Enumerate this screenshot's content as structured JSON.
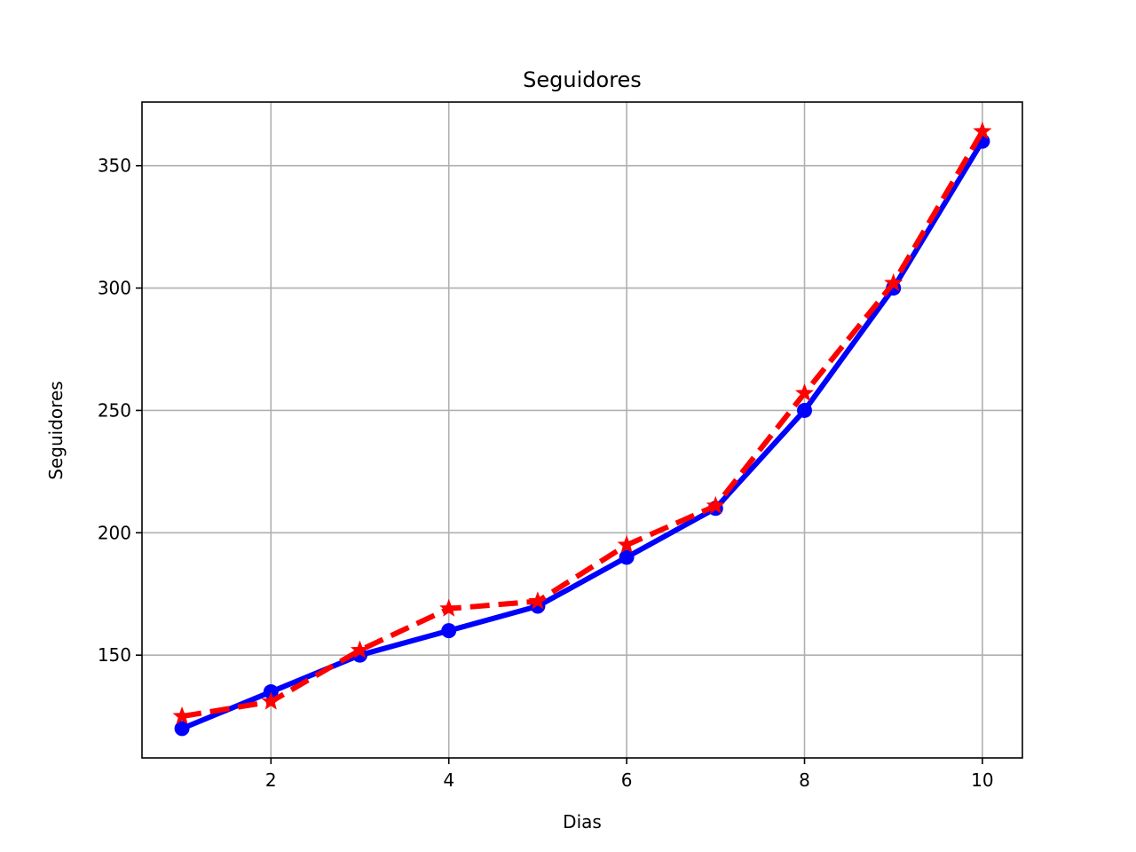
{
  "chart_data": {
    "type": "line",
    "title": "Seguidores",
    "xlabel": "Dias",
    "ylabel": "Seguidores",
    "x": [
      1,
      2,
      3,
      4,
      5,
      6,
      7,
      8,
      9,
      10
    ],
    "xlim": [
      0.55,
      10.45
    ],
    "ylim": [
      108,
      376
    ],
    "xticks": [
      2,
      4,
      6,
      8,
      10
    ],
    "yticks": [
      150,
      200,
      250,
      300,
      350
    ],
    "grid": true,
    "series": [
      {
        "values": [
          120,
          135,
          150,
          160,
          170,
          190,
          210,
          250,
          300,
          360
        ],
        "color": "#0000ff",
        "linestyle": "solid",
        "marker": "circle"
      },
      {
        "values": [
          125,
          131,
          152,
          169,
          172,
          195,
          211,
          257,
          302,
          364
        ],
        "color": "#ff0000",
        "linestyle": "dashed",
        "marker": "star"
      }
    ]
  }
}
